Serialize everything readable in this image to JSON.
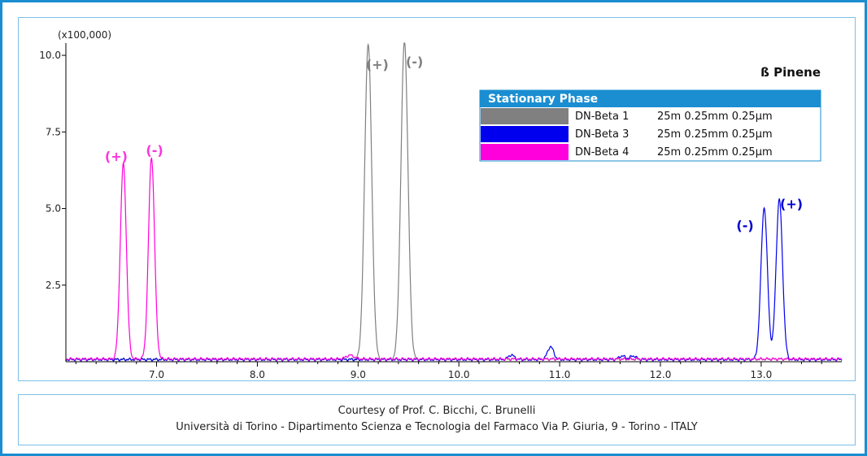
{
  "chart_data": {
    "type": "line",
    "title": "ß Pinene",
    "scale_note": "(x100,000)",
    "xlim": [
      6.1,
      13.8
    ],
    "ylim": [
      0,
      10.4
    ],
    "x_ticks": [
      7.0,
      8.0,
      9.0,
      10.0,
      11.0,
      12.0,
      13.0
    ],
    "x_tick_labels": [
      "7.0",
      "8.0",
      "9.0",
      "10.0",
      "11.0",
      "12.0",
      "13.0"
    ],
    "y_ticks": [
      2.5,
      5.0,
      7.5,
      10.0
    ],
    "y_tick_labels": [
      "2.5",
      "5.0",
      "7.5",
      "10.0"
    ],
    "grid": false,
    "legend_title": "Stationary Phase",
    "legend_placement": "top-right",
    "series": [
      {
        "name": "DN-Beta 1",
        "detail": "25m 0.25mm 0.25µm",
        "color": "#808080",
        "baseline": 0.08,
        "peaks": [
          {
            "x": 9.1,
            "y": 10.3,
            "w": 0.035
          },
          {
            "x": 9.46,
            "y": 10.4,
            "w": 0.035
          }
        ]
      },
      {
        "name": "DN-Beta 3",
        "detail": "25m 0.25mm 0.25µm",
        "color": "#0000ee",
        "baseline": 0.07,
        "peaks": [
          {
            "x": 10.52,
            "y": 0.15,
            "w": 0.03
          },
          {
            "x": 10.91,
            "y": 0.42,
            "w": 0.03
          },
          {
            "x": 11.62,
            "y": 0.12,
            "w": 0.03
          },
          {
            "x": 11.73,
            "y": 0.12,
            "w": 0.03
          },
          {
            "x": 13.03,
            "y": 4.96,
            "w": 0.032
          },
          {
            "x": 13.18,
            "y": 5.23,
            "w": 0.032
          }
        ]
      },
      {
        "name": "DN-Beta 4",
        "detail": "25m 0.25mm 0.25µm",
        "color": "#ff00dd",
        "baseline": 0.09,
        "peaks": [
          {
            "x": 6.67,
            "y": 6.37,
            "w": 0.03
          },
          {
            "x": 6.95,
            "y": 6.58,
            "w": 0.03
          },
          {
            "x": 8.92,
            "y": 0.12,
            "w": 0.04
          }
        ]
      }
    ],
    "annotations": [
      {
        "text": "(+)",
        "x": 6.6,
        "y": 6.55,
        "color": "#ff33dd"
      },
      {
        "text": "(-)",
        "x": 6.98,
        "y": 6.75,
        "color": "#ff33dd"
      },
      {
        "text": "(+)",
        "x": 9.19,
        "y": 9.55,
        "color": "#808080"
      },
      {
        "text": "(-)",
        "x": 9.56,
        "y": 9.65,
        "color": "#808080"
      },
      {
        "text": "(-)",
        "x": 12.84,
        "y": 4.3,
        "color": "#0000cc"
      },
      {
        "text": "(+)",
        "x": 13.3,
        "y": 5.0,
        "color": "#0000cc"
      }
    ]
  },
  "credits": {
    "line1": "Courtesy of Prof. C. Bicchi, C. Brunelli",
    "line2": "Università di Torino - Dipartimento Scienza e Tecnologia del Farmaco Via P. Giuria, 9 - Torino - ITALY"
  }
}
